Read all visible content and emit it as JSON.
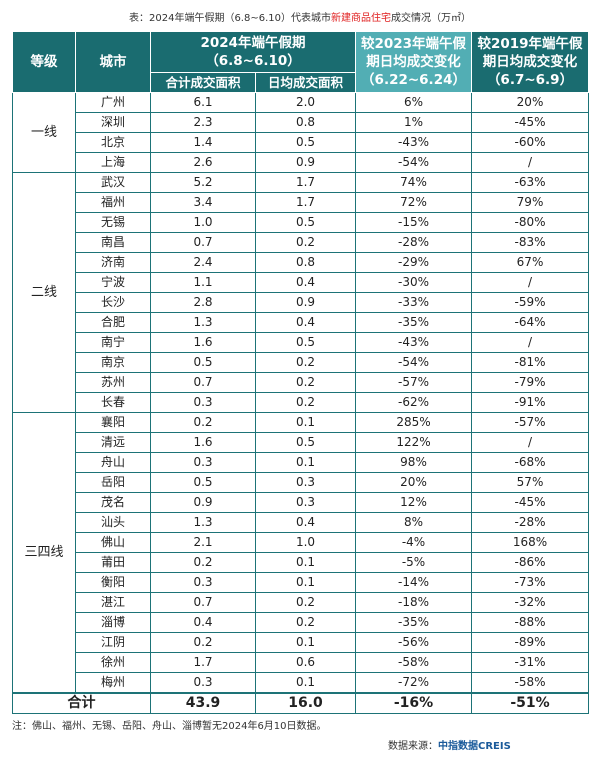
{
  "title": {
    "prefix": "表：2024年端午假期（6.8~6.10）代表城市",
    "highlight": "新建商品住宅",
    "suffix": "成交情况（万㎡）"
  },
  "headers": {
    "grade": "等级",
    "city": "城市",
    "period2024": "2024年端午假期",
    "period2024_range": "（6.8~6.10）",
    "total_area": "合计成交面积",
    "daily_area": "日均成交面积",
    "vs2023": "较2023年端午假期日均成交变化",
    "vs2023_range": "（6.22~6.24）",
    "vs2019": "较2019年端午假期日均成交变化",
    "vs2019_range": "（6.7~6.9）"
  },
  "groups": [
    {
      "grade": "一线",
      "rows": [
        [
          "广州",
          "6.1",
          "2.0",
          "6%",
          "20%"
        ],
        [
          "深圳",
          "2.3",
          "0.8",
          "1%",
          "-45%"
        ],
        [
          "北京",
          "1.4",
          "0.5",
          "-43%",
          "-60%"
        ],
        [
          "上海",
          "2.6",
          "0.9",
          "-54%",
          "/"
        ]
      ]
    },
    {
      "grade": "二线",
      "rows": [
        [
          "武汉",
          "5.2",
          "1.7",
          "74%",
          "-63%"
        ],
        [
          "福州",
          "3.4",
          "1.7",
          "72%",
          "79%"
        ],
        [
          "无锡",
          "1.0",
          "0.5",
          "-15%",
          "-80%"
        ],
        [
          "南昌",
          "0.7",
          "0.2",
          "-28%",
          "-83%"
        ],
        [
          "济南",
          "2.4",
          "0.8",
          "-29%",
          "67%"
        ],
        [
          "宁波",
          "1.1",
          "0.4",
          "-30%",
          "/"
        ],
        [
          "长沙",
          "2.8",
          "0.9",
          "-33%",
          "-59%"
        ],
        [
          "合肥",
          "1.3",
          "0.4",
          "-35%",
          "-64%"
        ],
        [
          "南宁",
          "1.6",
          "0.5",
          "-43%",
          "/"
        ],
        [
          "南京",
          "0.5",
          "0.2",
          "-54%",
          "-81%"
        ],
        [
          "苏州",
          "0.7",
          "0.2",
          "-57%",
          "-79%"
        ],
        [
          "长春",
          "0.3",
          "0.2",
          "-62%",
          "-91%"
        ]
      ]
    },
    {
      "grade": "三四线",
      "rows": [
        [
          "襄阳",
          "0.2",
          "0.1",
          "285%",
          "-57%"
        ],
        [
          "清远",
          "1.6",
          "0.5",
          "122%",
          "/"
        ],
        [
          "舟山",
          "0.3",
          "0.1",
          "98%",
          "-68%"
        ],
        [
          "岳阳",
          "0.5",
          "0.3",
          "20%",
          "57%"
        ],
        [
          "茂名",
          "0.9",
          "0.3",
          "12%",
          "-45%"
        ],
        [
          "汕头",
          "1.3",
          "0.4",
          "8%",
          "-28%"
        ],
        [
          "佛山",
          "2.1",
          "1.0",
          "-4%",
          "168%"
        ],
        [
          "莆田",
          "0.2",
          "0.1",
          "-5%",
          "-86%"
        ],
        [
          "衡阳",
          "0.3",
          "0.1",
          "-14%",
          "-73%"
        ],
        [
          "湛江",
          "0.7",
          "0.2",
          "-18%",
          "-32%"
        ],
        [
          "淄博",
          "0.4",
          "0.2",
          "-35%",
          "-88%"
        ],
        [
          "江阴",
          "0.2",
          "0.1",
          "-56%",
          "-89%"
        ],
        [
          "徐州",
          "1.7",
          "0.6",
          "-58%",
          "-31%"
        ],
        [
          "梅州",
          "0.3",
          "0.1",
          "-72%",
          "-58%"
        ]
      ]
    }
  ],
  "total": {
    "label": "合计",
    "total_area": "43.9",
    "daily_area": "16.0",
    "vs2023": "-16%",
    "vs2019": "-51%"
  },
  "note": "注：佛山、福州、无锡、岳阳、舟山、淄博暂无2024年6月10日数据。",
  "source": {
    "label": "数据来源：",
    "name": "中指数据CREIS"
  },
  "colors": {
    "header": "#1a6c70",
    "highlight_header": "#52aeb4",
    "title_highlight": "#e02020"
  }
}
